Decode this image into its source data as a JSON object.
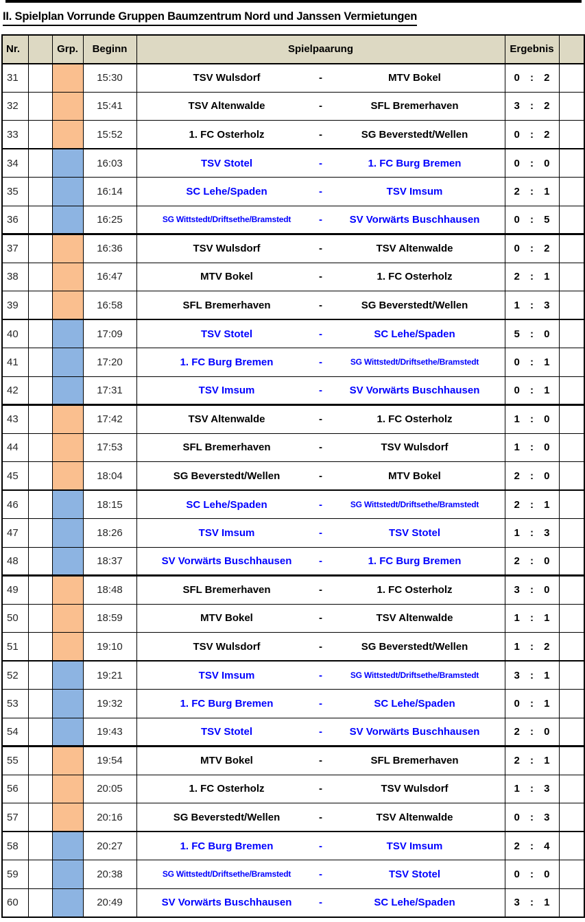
{
  "title": "II. Spielplan Vorrunde Gruppen Baumzentrum Nord und Janssen Vermietungen",
  "table": {
    "headers": {
      "nr": "Nr.",
      "blank1": "",
      "grp": "Grp.",
      "beginn": "Beginn",
      "spielpaarung": "Spielpaarung",
      "ergebnis": "Ergebnis",
      "blank2": ""
    },
    "pairing_separator": "-",
    "score_separator": ":",
    "colors": {
      "header_fill": "#ddd9c3",
      "orange_group_fill": "#fabf8f",
      "blue_group_fill": "#8db4e2",
      "orange_group_text": "#000000",
      "blue_group_text": "#0000ff",
      "border": "#000000"
    },
    "rows": [
      {
        "nr": "31",
        "group": "orange",
        "time": "15:30",
        "home": "TSV Wulsdorf",
        "away": "MTV Bokel",
        "score_home": "0",
        "score_away": "2"
      },
      {
        "nr": "32",
        "group": "orange",
        "time": "15:41",
        "home": "TSV Altenwalde",
        "away": "SFL Bremerhaven",
        "score_home": "3",
        "score_away": "2"
      },
      {
        "nr": "33",
        "group": "orange",
        "time": "15:52",
        "home": "1. FC Osterholz",
        "away": "SG Beverstedt/Wellen",
        "score_home": "0",
        "score_away": "2"
      },
      {
        "nr": "34",
        "group": "blue",
        "time": "16:03",
        "home": "TSV Stotel",
        "away": "1. FC Burg Bremen",
        "score_home": "0",
        "score_away": "0"
      },
      {
        "nr": "35",
        "group": "blue",
        "time": "16:14",
        "home": "SC Lehe/Spaden",
        "away": "TSV Imsum",
        "score_home": "2",
        "score_away": "1"
      },
      {
        "nr": "36",
        "group": "blue",
        "time": "16:25",
        "home": "SG Wittstedt/Driftsethe/Bramstedt",
        "away": "SV Vorwärts Buschhausen",
        "score_home": "0",
        "score_away": "5"
      },
      {
        "nr": "37",
        "group": "orange",
        "time": "16:36",
        "home": "TSV Wulsdorf",
        "away": "TSV Altenwalde",
        "score_home": "0",
        "score_away": "2"
      },
      {
        "nr": "38",
        "group": "orange",
        "time": "16:47",
        "home": "MTV Bokel",
        "away": "1. FC Osterholz",
        "score_home": "2",
        "score_away": "1"
      },
      {
        "nr": "39",
        "group": "orange",
        "time": "16:58",
        "home": "SFL Bremerhaven",
        "away": "SG Beverstedt/Wellen",
        "score_home": "1",
        "score_away": "3"
      },
      {
        "nr": "40",
        "group": "blue",
        "time": "17:09",
        "home": "TSV Stotel",
        "away": "SC Lehe/Spaden",
        "score_home": "5",
        "score_away": "0"
      },
      {
        "nr": "41",
        "group": "blue",
        "time": "17:20",
        "home": "1. FC Burg Bremen",
        "away": "SG Wittstedt/Driftsethe/Bramstedt",
        "score_home": "0",
        "score_away": "1"
      },
      {
        "nr": "42",
        "group": "blue",
        "time": "17:31",
        "home": "TSV Imsum",
        "away": "SV Vorwärts Buschhausen",
        "score_home": "0",
        "score_away": "1"
      },
      {
        "nr": "43",
        "group": "orange",
        "time": "17:42",
        "home": "TSV Altenwalde",
        "away": "1. FC Osterholz",
        "score_home": "1",
        "score_away": "0"
      },
      {
        "nr": "44",
        "group": "orange",
        "time": "17:53",
        "home": "SFL Bremerhaven",
        "away": "TSV Wulsdorf",
        "score_home": "1",
        "score_away": "0"
      },
      {
        "nr": "45",
        "group": "orange",
        "time": "18:04",
        "home": "SG Beverstedt/Wellen",
        "away": "MTV Bokel",
        "score_home": "2",
        "score_away": "0"
      },
      {
        "nr": "46",
        "group": "blue",
        "time": "18:15",
        "home": "SC Lehe/Spaden",
        "away": "SG Wittstedt/Driftsethe/Bramstedt",
        "score_home": "2",
        "score_away": "1"
      },
      {
        "nr": "47",
        "group": "blue",
        "time": "18:26",
        "home": "TSV Imsum",
        "away": "TSV Stotel",
        "score_home": "1",
        "score_away": "3"
      },
      {
        "nr": "48",
        "group": "blue",
        "time": "18:37",
        "home": "SV Vorwärts Buschhausen",
        "away": "1. FC Burg Bremen",
        "score_home": "2",
        "score_away": "0"
      },
      {
        "nr": "49",
        "group": "orange",
        "time": "18:48",
        "home": "SFL Bremerhaven",
        "away": "1. FC Osterholz",
        "score_home": "3",
        "score_away": "0"
      },
      {
        "nr": "50",
        "group": "orange",
        "time": "18:59",
        "home": "MTV Bokel",
        "away": "TSV Altenwalde",
        "score_home": "1",
        "score_away": "1"
      },
      {
        "nr": "51",
        "group": "orange",
        "time": "19:10",
        "home": "TSV Wulsdorf",
        "away": "SG Beverstedt/Wellen",
        "score_home": "1",
        "score_away": "2"
      },
      {
        "nr": "52",
        "group": "blue",
        "time": "19:21",
        "home": "TSV Imsum",
        "away": "SG Wittstedt/Driftsethe/Bramstedt",
        "score_home": "3",
        "score_away": "1"
      },
      {
        "nr": "53",
        "group": "blue",
        "time": "19:32",
        "home": "1. FC Burg Bremen",
        "away": "SC Lehe/Spaden",
        "score_home": "0",
        "score_away": "1"
      },
      {
        "nr": "54",
        "group": "blue",
        "time": "19:43",
        "home": "TSV Stotel",
        "away": "SV Vorwärts Buschhausen",
        "score_home": "2",
        "score_away": "0"
      },
      {
        "nr": "55",
        "group": "orange",
        "time": "19:54",
        "home": "MTV Bokel",
        "away": "SFL Bremerhaven",
        "score_home": "2",
        "score_away": "1"
      },
      {
        "nr": "56",
        "group": "orange",
        "time": "20:05",
        "home": "1. FC Osterholz",
        "away": "TSV Wulsdorf",
        "score_home": "1",
        "score_away": "3"
      },
      {
        "nr": "57",
        "group": "orange",
        "time": "20:16",
        "home": "SG Beverstedt/Wellen",
        "away": "TSV Altenwalde",
        "score_home": "0",
        "score_away": "3"
      },
      {
        "nr": "58",
        "group": "blue",
        "time": "20:27",
        "home": "1. FC Burg Bremen",
        "away": "TSV Imsum",
        "score_home": "2",
        "score_away": "4"
      },
      {
        "nr": "59",
        "group": "blue",
        "time": "20:38",
        "home": "SG Wittstedt/Driftsethe/Bramstedt",
        "away": "TSV Stotel",
        "score_home": "0",
        "score_away": "0"
      },
      {
        "nr": "60",
        "group": "blue",
        "time": "20:49",
        "home": "SV Vorwärts Buschhausen",
        "away": "SC Lehe/Spaden",
        "score_home": "3",
        "score_away": "1"
      }
    ]
  }
}
